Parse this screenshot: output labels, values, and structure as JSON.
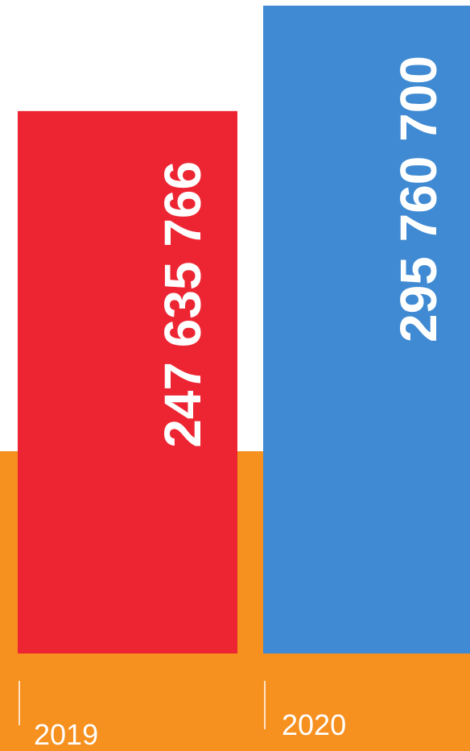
{
  "chart_data": {
    "type": "bar",
    "categories": [
      "2019",
      "2020"
    ],
    "values": [
      247635766,
      295760700
    ],
    "value_labels": [
      "247 635 766",
      "295 760 700"
    ],
    "colors": [
      "#ed2533",
      "#3f8ad2"
    ],
    "background_color": "#f6901e"
  }
}
